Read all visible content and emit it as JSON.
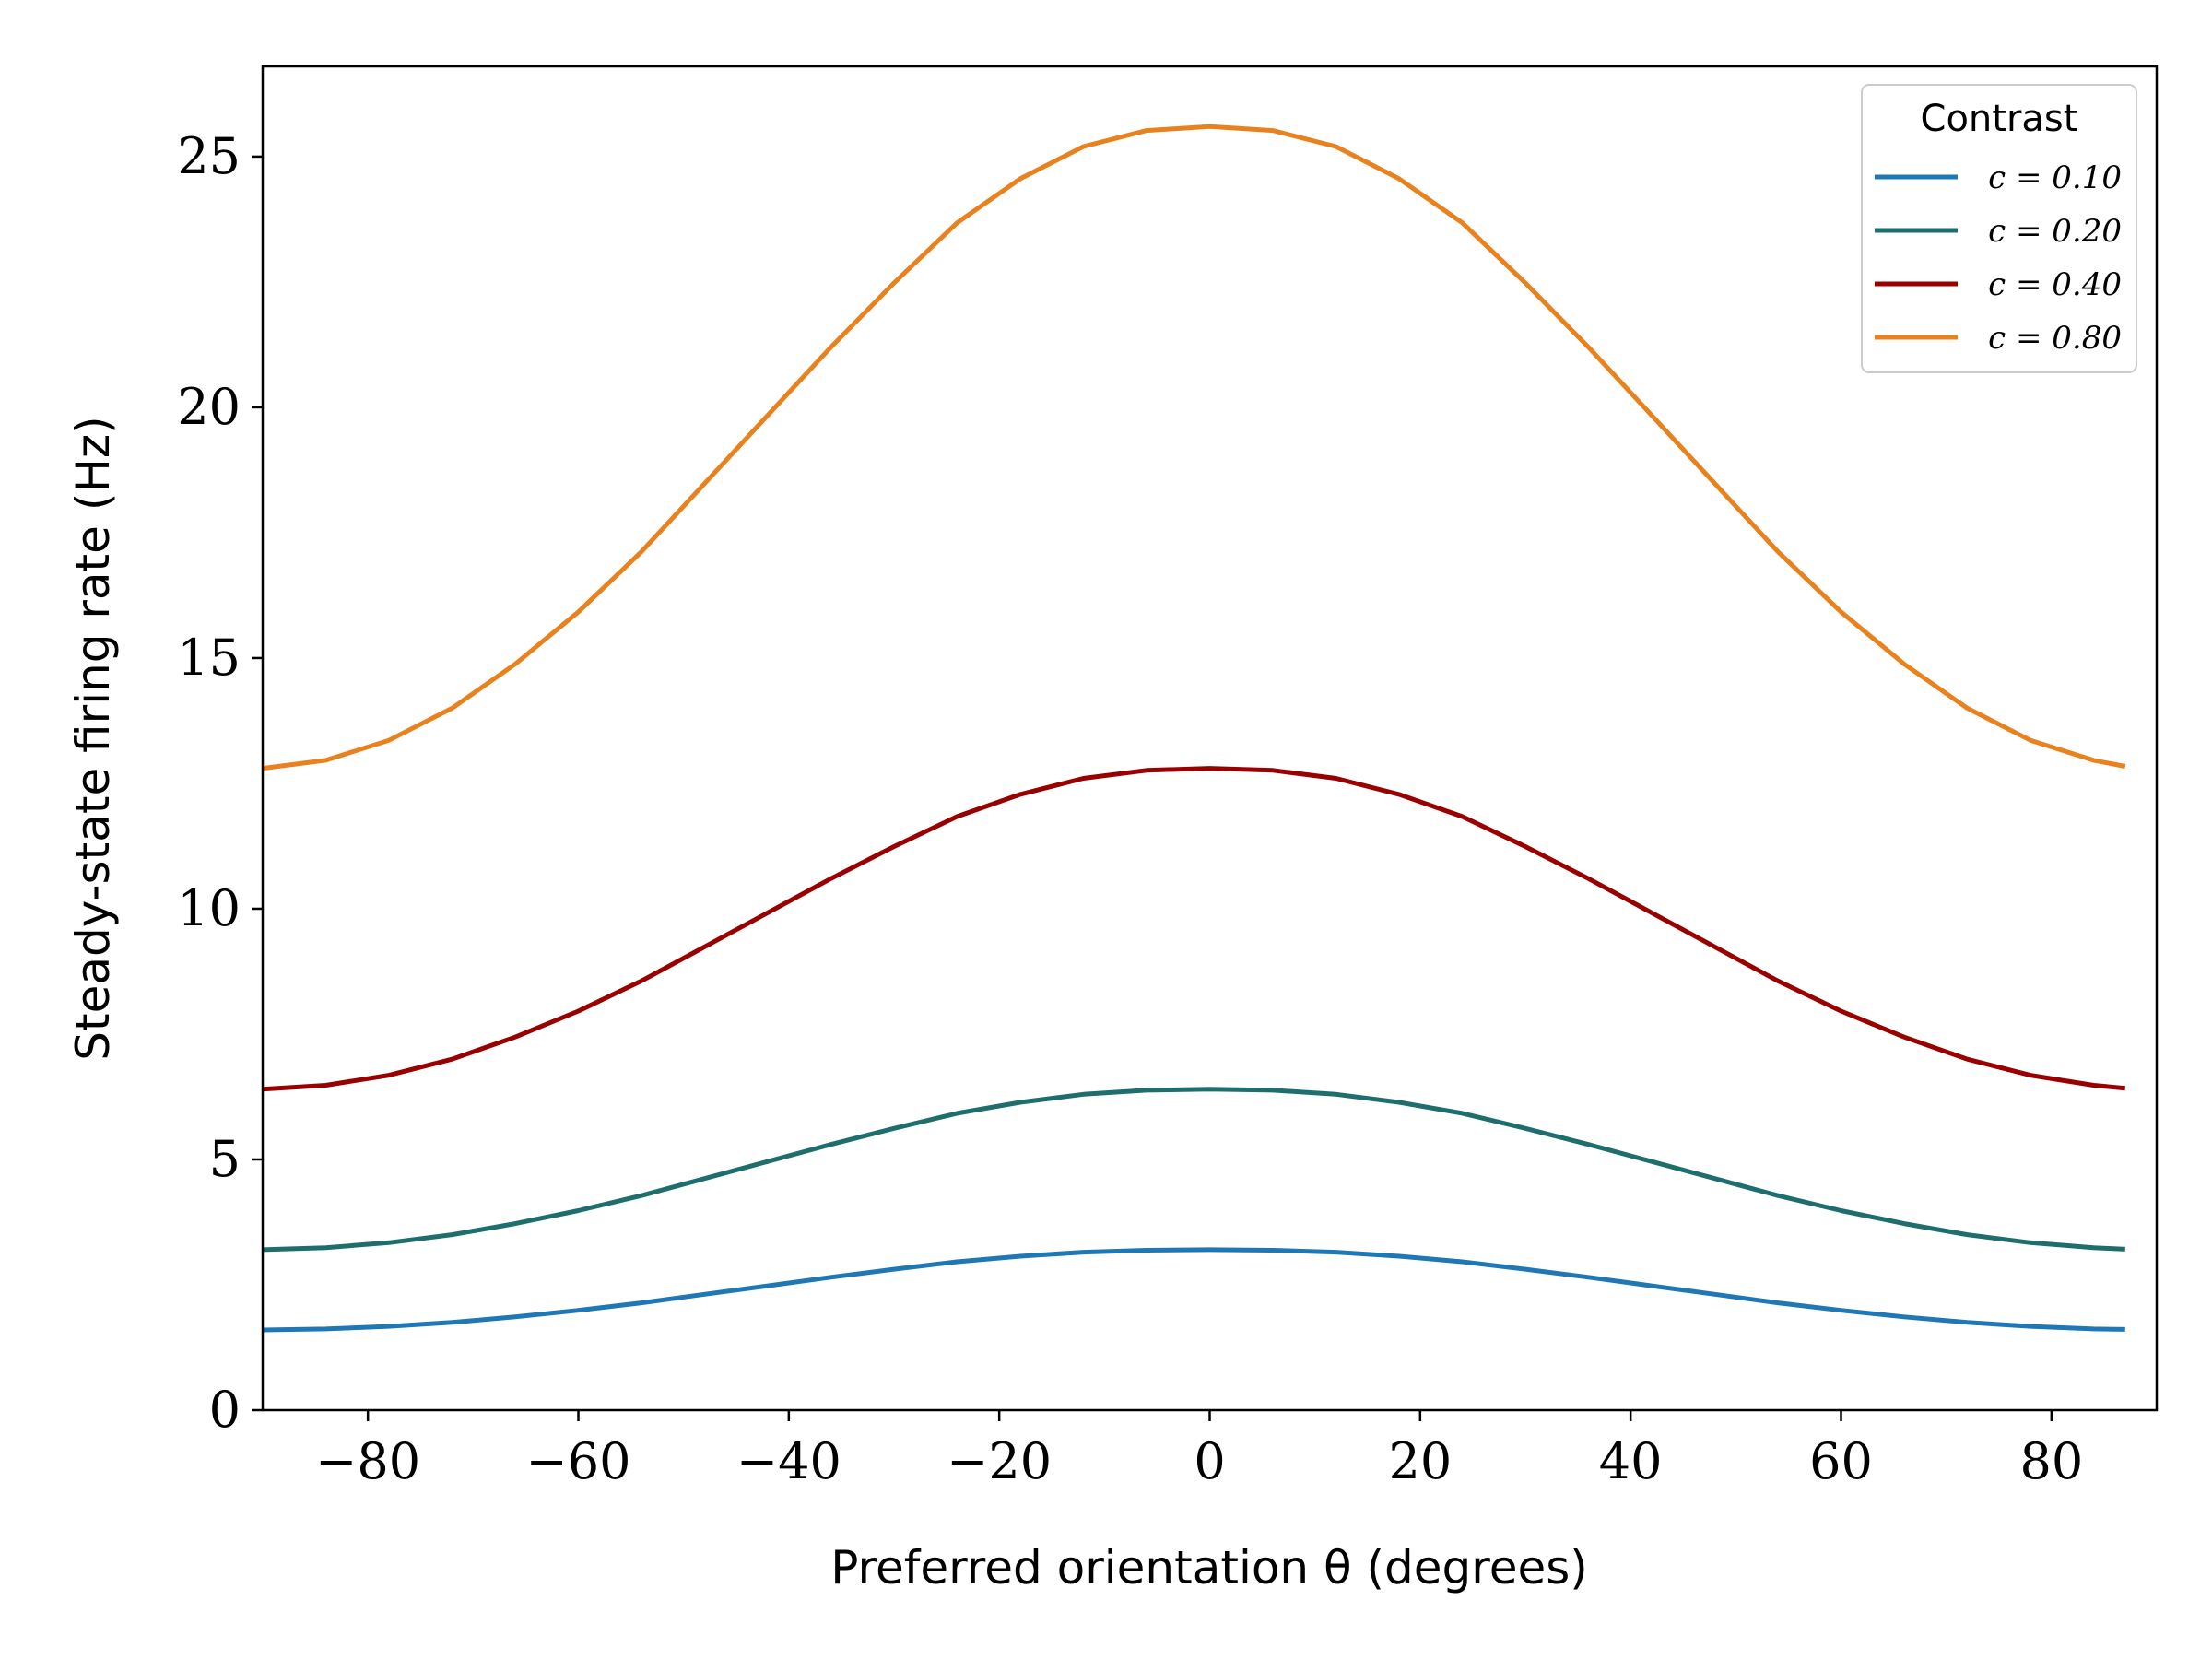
{
  "chart_data": {
    "type": "line",
    "xlabel": "Preferred orientation θ (degrees)",
    "ylabel": "Steady-state firing rate (Hz)",
    "xlim": [
      -90,
      90
    ],
    "ylim": [
      0,
      26.8
    ],
    "xticks": [
      -80,
      -60,
      -40,
      -20,
      0,
      20,
      40,
      60,
      80
    ],
    "xtick_labels": [
      "−80",
      "−60",
      "−40",
      "−20",
      "0",
      "20",
      "40",
      "60",
      "80"
    ],
    "yticks": [
      0,
      5,
      10,
      15,
      20,
      25
    ],
    "ytick_labels": [
      "0",
      "5",
      "10",
      "15",
      "20",
      "25"
    ],
    "grid": false,
    "x": [
      -90,
      -84,
      -78,
      -72,
      -66,
      -60,
      -54,
      -48,
      -42,
      -36,
      -30,
      -24,
      -18,
      -12,
      -6,
      0,
      6,
      12,
      18,
      24,
      30,
      36,
      42,
      48,
      54,
      60,
      66,
      72,
      78,
      84,
      87
    ],
    "series": [
      {
        "name": "c = 0.10",
        "color": "#1f77b4",
        "values": [
          1.6,
          1.62,
          1.67,
          1.75,
          1.86,
          1.99,
          2.14,
          2.31,
          2.48,
          2.65,
          2.81,
          2.96,
          3.07,
          3.15,
          3.19,
          3.2,
          3.19,
          3.15,
          3.07,
          2.96,
          2.81,
          2.65,
          2.48,
          2.31,
          2.14,
          1.99,
          1.86,
          1.75,
          1.67,
          1.62,
          1.61
        ]
      },
      {
        "name": "c = 0.20",
        "color": "#1e6e6e",
        "values": [
          3.2,
          3.24,
          3.34,
          3.5,
          3.72,
          3.98,
          4.28,
          4.62,
          4.96,
          5.3,
          5.62,
          5.92,
          6.14,
          6.3,
          6.38,
          6.4,
          6.38,
          6.3,
          6.14,
          5.92,
          5.62,
          5.3,
          4.96,
          4.62,
          4.28,
          3.98,
          3.72,
          3.5,
          3.34,
          3.24,
          3.21
        ]
      },
      {
        "name": "c = 0.40",
        "color": "#990000",
        "values": [
          6.4,
          6.48,
          6.68,
          7.0,
          7.44,
          7.96,
          8.56,
          9.24,
          9.92,
          10.6,
          11.24,
          11.84,
          12.28,
          12.6,
          12.76,
          12.8,
          12.76,
          12.6,
          12.28,
          11.84,
          11.24,
          10.6,
          9.92,
          9.24,
          8.56,
          7.96,
          7.44,
          7.0,
          6.68,
          6.48,
          6.42
        ]
      },
      {
        "name": "c = 0.80",
        "color": "#e8821e",
        "values": [
          12.8,
          12.96,
          13.36,
          14.0,
          14.88,
          15.92,
          17.12,
          18.48,
          19.84,
          21.2,
          22.48,
          23.68,
          24.56,
          25.2,
          25.52,
          25.6,
          25.52,
          25.2,
          24.56,
          23.68,
          22.48,
          21.2,
          19.84,
          18.48,
          17.12,
          15.92,
          14.88,
          14.0,
          13.36,
          12.96,
          12.84
        ]
      }
    ],
    "legend": {
      "title": "Contrast",
      "position": "top-right"
    }
  }
}
